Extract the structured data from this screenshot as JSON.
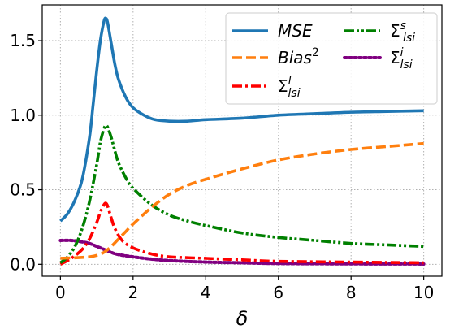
{
  "chart_data": {
    "type": "line",
    "title": "",
    "xlabel": "δ",
    "ylabel": "",
    "xlim": [
      -0.5,
      10.5
    ],
    "ylim": [
      -0.08,
      1.74
    ],
    "xticks": [
      0,
      2,
      4,
      6,
      8,
      10
    ],
    "yticks": [
      0.0,
      0.5,
      1.0,
      1.5
    ],
    "xtick_labels": [
      "0",
      "2",
      "4",
      "6",
      "8",
      "10"
    ],
    "ytick_labels": [
      "0.0",
      "0.5",
      "1.0",
      "1.5"
    ],
    "grid": true,
    "grid_style": "dotted",
    "legend_position": "top-right",
    "legend_columns": 2,
    "series": [
      {
        "name": "MSE",
        "color": "#1f77b4",
        "style": "solid",
        "x": [
          0,
          0.2,
          0.4,
          0.6,
          0.8,
          0.9,
          1.0,
          1.1,
          1.2,
          1.25,
          1.3,
          1.4,
          1.5,
          1.6,
          1.8,
          2.0,
          2.3,
          2.6,
          3.0,
          3.5,
          4,
          5,
          6,
          7,
          8,
          9,
          10
        ],
        "y": [
          0.29,
          0.34,
          0.43,
          0.57,
          0.85,
          1.07,
          1.3,
          1.5,
          1.63,
          1.65,
          1.62,
          1.48,
          1.34,
          1.24,
          1.12,
          1.05,
          1.0,
          0.97,
          0.96,
          0.96,
          0.97,
          0.98,
          1.0,
          1.01,
          1.02,
          1.025,
          1.03
        ]
      },
      {
        "name": "Bias²",
        "color": "#ff7f0e",
        "style": "dashed",
        "x": [
          0,
          0.5,
          0.8,
          1.0,
          1.2,
          1.4,
          1.6,
          1.8,
          2.0,
          2.5,
          3.0,
          3.5,
          4,
          5,
          6,
          7,
          8,
          9,
          10
        ],
        "y": [
          0.04,
          0.045,
          0.05,
          0.06,
          0.08,
          0.12,
          0.17,
          0.22,
          0.27,
          0.38,
          0.47,
          0.53,
          0.57,
          0.64,
          0.7,
          0.74,
          0.77,
          0.79,
          0.81
        ]
      },
      {
        "name": "Σ_lsi^l",
        "color": "#ff0000",
        "style": "dashdot",
        "x": [
          0,
          0.3,
          0.6,
          0.8,
          1.0,
          1.1,
          1.2,
          1.25,
          1.3,
          1.4,
          1.5,
          1.7,
          2.0,
          2.5,
          3,
          4,
          5,
          6,
          8,
          10
        ],
        "y": [
          0.0,
          0.04,
          0.1,
          0.17,
          0.28,
          0.35,
          0.4,
          0.41,
          0.39,
          0.31,
          0.24,
          0.16,
          0.11,
          0.07,
          0.05,
          0.04,
          0.03,
          0.02,
          0.015,
          0.01
        ]
      },
      {
        "name": "Σ_lsi^s",
        "color": "#008000",
        "style": "dashdotdot",
        "x": [
          0,
          0.2,
          0.4,
          0.6,
          0.8,
          1.0,
          1.1,
          1.2,
          1.25,
          1.3,
          1.4,
          1.5,
          1.6,
          1.8,
          2.0,
          2.5,
          3,
          3.5,
          4,
          5,
          6,
          7,
          8,
          9,
          10
        ],
        "y": [
          0.01,
          0.05,
          0.12,
          0.24,
          0.42,
          0.67,
          0.82,
          0.91,
          0.93,
          0.92,
          0.85,
          0.76,
          0.68,
          0.58,
          0.51,
          0.4,
          0.33,
          0.29,
          0.26,
          0.21,
          0.18,
          0.16,
          0.14,
          0.13,
          0.12
        ]
      },
      {
        "name": "Σ_lsi^i",
        "color": "#800080",
        "style": "dotted",
        "x": [
          0,
          0.3,
          0.6,
          0.8,
          1.0,
          1.2,
          1.4,
          1.6,
          2.0,
          2.5,
          3,
          4,
          5,
          6,
          8,
          10
        ],
        "y": [
          0.16,
          0.16,
          0.15,
          0.14,
          0.12,
          0.1,
          0.08,
          0.065,
          0.05,
          0.035,
          0.025,
          0.015,
          0.01,
          0.005,
          0.003,
          0.002
        ]
      }
    ]
  }
}
